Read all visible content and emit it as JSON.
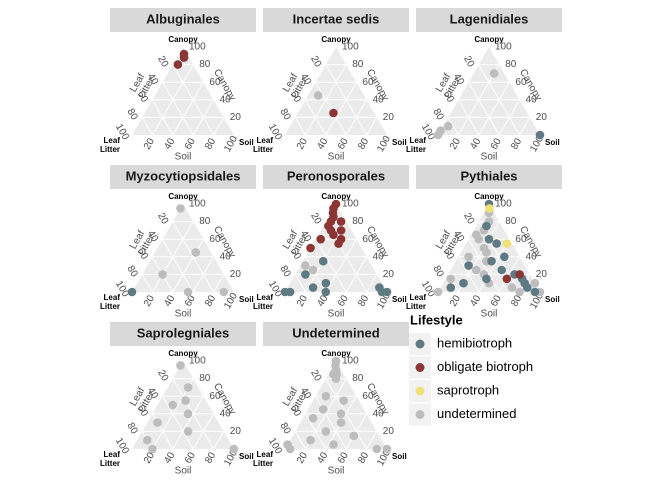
{
  "chart_data": [
    {
      "type": "ternary",
      "title": "Albuginales",
      "corner_labels": {
        "top": "Canopy",
        "right": "Soil",
        "left": [
          "Leaf",
          "Litter"
        ]
      },
      "ticks": [
        20,
        40,
        60,
        80,
        100
      ],
      "series": [
        {
          "name": "obligate biotroph",
          "color": "#8b3535",
          "canopy": [
            80,
            88,
            92
          ],
          "soil": [
            5,
            7,
            5
          ],
          "litter": [
            15,
            5,
            3
          ]
        }
      ]
    },
    {
      "type": "ternary",
      "title": "Incertae sedis",
      "corner_labels": {
        "top": "Canopy",
        "right": "Soil",
        "left": [
          "Leaf",
          "Litter"
        ]
      },
      "ticks": [
        20,
        40,
        60,
        80,
        100
      ],
      "series": [
        {
          "name": "undetermined",
          "color": "#bdbdbd",
          "canopy": [
            45
          ],
          "soil": [
            10
          ],
          "litter": [
            45
          ]
        },
        {
          "name": "obligate biotroph",
          "color": "#8b3535",
          "canopy": [
            25
          ],
          "soil": [
            35
          ],
          "litter": [
            40
          ]
        }
      ]
    },
    {
      "type": "ternary",
      "title": "Lagenidiales",
      "corner_labels": {
        "top": "Canopy",
        "right": "Soil",
        "left": [
          "Leaf",
          "Litter"
        ]
      },
      "ticks": [
        20,
        40,
        60,
        80,
        100
      ],
      "series": [
        {
          "name": "undetermined",
          "color": "#bdbdbd",
          "canopy": [
            70,
            10,
            0,
            5
          ],
          "soil": [
            20,
            5,
            0,
            0
          ],
          "litter": [
            10,
            85,
            100,
            95
          ]
        },
        {
          "name": "hemibiotroph",
          "color": "#5f7a83",
          "canopy": [
            0
          ],
          "soil": [
            100
          ],
          "litter": [
            0
          ]
        }
      ]
    },
    {
      "type": "ternary",
      "title": "Myzocytiopsidales",
      "corner_labels": {
        "top": "Canopy",
        "right": "Soil",
        "left": [
          "Leaf",
          "Litter"
        ]
      },
      "ticks": [
        20,
        40,
        60,
        80,
        100
      ],
      "series": [
        {
          "name": "undetermined",
          "color": "#bdbdbd",
          "canopy": [
            95,
            45,
            20,
            0,
            0
          ],
          "soil": [
            0,
            40,
            20,
            90,
            55
          ],
          "litter": [
            5,
            15,
            60,
            10,
            45
          ]
        },
        {
          "name": "hemibiotroph",
          "color": "#5f7a83",
          "canopy": [
            0
          ],
          "soil": [
            0
          ],
          "litter": [
            100
          ]
        }
      ]
    },
    {
      "type": "ternary",
      "title": "Peronosporales",
      "corner_labels": {
        "top": "Canopy",
        "right": "Soil",
        "left": [
          "Leaf",
          "Litter"
        ]
      },
      "ticks": [
        20,
        40,
        60,
        80,
        100
      ],
      "series": [
        {
          "name": "undetermined",
          "color": "#bdbdbd",
          "canopy": [
            25,
            30
          ],
          "soil": [
            15,
            5
          ],
          "litter": [
            60,
            65
          ]
        },
        {
          "name": "hemibiotroph",
          "color": "#5f7a83",
          "canopy": [
            35,
            10,
            5,
            0,
            5,
            0,
            0,
            0,
            0,
            20
          ],
          "soil": [
            20,
            35,
            25,
            40,
            90,
            95,
            100,
            0,
            5,
            10
          ],
          "litter": [
            45,
            55,
            70,
            60,
            5,
            5,
            0,
            100,
            95,
            70
          ]
        },
        {
          "name": "obligate biotroph",
          "color": "#8b3535",
          "canopy": [
            100,
            95,
            90,
            85,
            80,
            75,
            70,
            65,
            60,
            70,
            55,
            80,
            60,
            50
          ],
          "soil": [
            0,
            0,
            2,
            5,
            5,
            5,
            10,
            15,
            5,
            20,
            25,
            15,
            25,
            0
          ],
          "litter": [
            0,
            5,
            8,
            10,
            15,
            20,
            20,
            20,
            35,
            10,
            20,
            5,
            15,
            50
          ]
        }
      ]
    },
    {
      "type": "ternary",
      "title": "Pythiales",
      "corner_labels": {
        "top": "Canopy",
        "right": "Soil",
        "left": [
          "Leaf",
          "Litter"
        ]
      },
      "ticks": [
        20,
        40,
        60,
        80,
        100
      ],
      "series": [
        {
          "name": "undetermined",
          "color": "#bdbdbd",
          "canopy": [
            90,
            80,
            70,
            65,
            60,
            50,
            45,
            40,
            35,
            25,
            20,
            15,
            10,
            5,
            0,
            0,
            0,
            10
          ],
          "soil": [
            5,
            10,
            10,
            5,
            10,
            20,
            25,
            10,
            30,
            25,
            35,
            5,
            45,
            70,
            80,
            100,
            0,
            90
          ],
          "litter": [
            5,
            10,
            20,
            30,
            30,
            30,
            30,
            50,
            35,
            50,
            45,
            80,
            45,
            25,
            20,
            0,
            100,
            0
          ]
        },
        {
          "name": "hemibiotroph",
          "color": "#5f7a83",
          "canopy": [
            100,
            75,
            60,
            55,
            40,
            25,
            20,
            15,
            10,
            5,
            0,
            30,
            10,
            15,
            5,
            35
          ],
          "soil": [
            0,
            10,
            20,
            30,
            45,
            50,
            65,
            75,
            80,
            85,
            95,
            15,
            20,
            40,
            10,
            35
          ],
          "litter": [
            0,
            15,
            20,
            15,
            15,
            25,
            15,
            10,
            10,
            10,
            5,
            55,
            70,
            45,
            85,
            30
          ]
        },
        {
          "name": "obligate biotroph",
          "color": "#8b3535",
          "canopy": [
            20,
            15
          ],
          "soil": [
            70,
            60
          ],
          "litter": [
            10,
            25
          ]
        },
        {
          "name": "saprotroph",
          "color": "#f0e07a",
          "canopy": [
            95,
            55
          ],
          "soil": [
            3,
            40
          ],
          "litter": [
            2,
            5
          ]
        }
      ]
    },
    {
      "type": "ternary",
      "title": "Saprolegniales",
      "corner_labels": {
        "top": "Canopy",
        "right": "Soil",
        "left": [
          "Leaf",
          "Litter"
        ]
      },
      "ticks": [
        20,
        40,
        60,
        80,
        100
      ],
      "series": [
        {
          "name": "undetermined",
          "color": "#bdbdbd",
          "canopy": [
            95,
            70,
            55,
            50,
            40,
            30,
            20,
            0,
            0,
            10
          ],
          "soil": [
            0,
            20,
            25,
            15,
            35,
            10,
            45,
            100,
            20,
            10
          ],
          "litter": [
            5,
            10,
            20,
            35,
            25,
            60,
            35,
            0,
            80,
            80
          ]
        }
      ]
    },
    {
      "type": "ternary",
      "title": "Undetermined",
      "corner_labels": {
        "top": "Canopy",
        "right": "Soil",
        "left": [
          "Leaf",
          "Litter"
        ]
      },
      "ticks": [
        20,
        40,
        60,
        80,
        100
      ],
      "series": [
        {
          "name": "undetermined",
          "color": "#bdbdbd",
          "canopy": [
            100,
            95,
            90,
            85,
            80,
            85,
            60,
            55,
            45,
            40,
            35,
            30,
            20,
            15,
            10,
            5,
            0,
            0,
            0,
            5
          ],
          "soil": [
            0,
            2,
            5,
            8,
            10,
            5,
            10,
            30,
            15,
            35,
            10,
            40,
            30,
            60,
            20,
            45,
            90,
            100,
            5,
            0
          ],
          "litter": [
            0,
            3,
            5,
            7,
            10,
            10,
            30,
            15,
            40,
            25,
            55,
            30,
            50,
            25,
            70,
            50,
            10,
            0,
            95,
            95
          ]
        }
      ]
    }
  ],
  "legend": {
    "title": "Lifestyle",
    "items": [
      {
        "name": "hemibiotroph",
        "color": "#5f7a83"
      },
      {
        "name": "obligate biotroph",
        "color": "#8b3535"
      },
      {
        "name": "saprotroph",
        "color": "#f0e07a"
      },
      {
        "name": "undetermined",
        "color": "#bdbdbd"
      }
    ]
  }
}
